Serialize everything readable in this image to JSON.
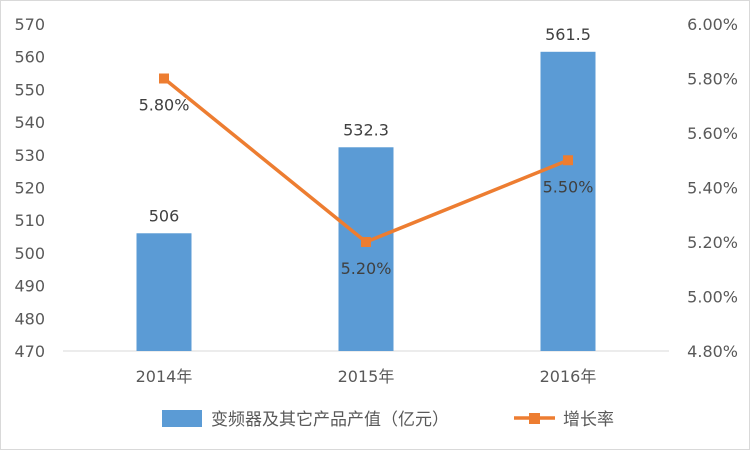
{
  "chart_data": {
    "type": "bar+line",
    "categories": [
      "2014年",
      "2015年",
      "2016年"
    ],
    "series": [
      {
        "name": "变频器及其它产品产值（亿元）",
        "type": "bar",
        "axis": "left",
        "color": "#5b9bd5",
        "values": [
          506,
          532.3,
          561.5
        ],
        "labels": [
          "506",
          "532.3",
          "561.5"
        ]
      },
      {
        "name": "增长率",
        "type": "line",
        "axis": "right",
        "color": "#ed7d31",
        "marker": "square",
        "values": [
          0.058,
          0.052,
          0.055
        ],
        "labels": [
          "5.80%",
          "5.20%",
          "5.50%"
        ]
      }
    ],
    "y_left": {
      "ylim": [
        470,
        570
      ],
      "ticks": [
        "470",
        "480",
        "490",
        "500",
        "510",
        "520",
        "530",
        "540",
        "550",
        "560",
        "570"
      ]
    },
    "y_right": {
      "ylim": [
        0.048,
        0.06
      ],
      "ticks": [
        "4.80%",
        "5.00%",
        "5.20%",
        "5.40%",
        "5.60%",
        "5.80%",
        "6.00%"
      ]
    },
    "legend": {
      "position": "bottom"
    },
    "grid": false
  }
}
